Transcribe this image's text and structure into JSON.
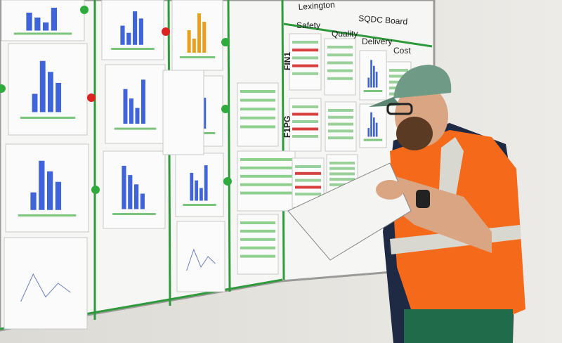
{
  "board": {
    "brand": "Lexington",
    "title": "SQDC Board",
    "columns": [
      "Safety",
      "Quality",
      "Delivery",
      "Cost"
    ],
    "rows": [
      "FIN1",
      "F1PG"
    ]
  }
}
